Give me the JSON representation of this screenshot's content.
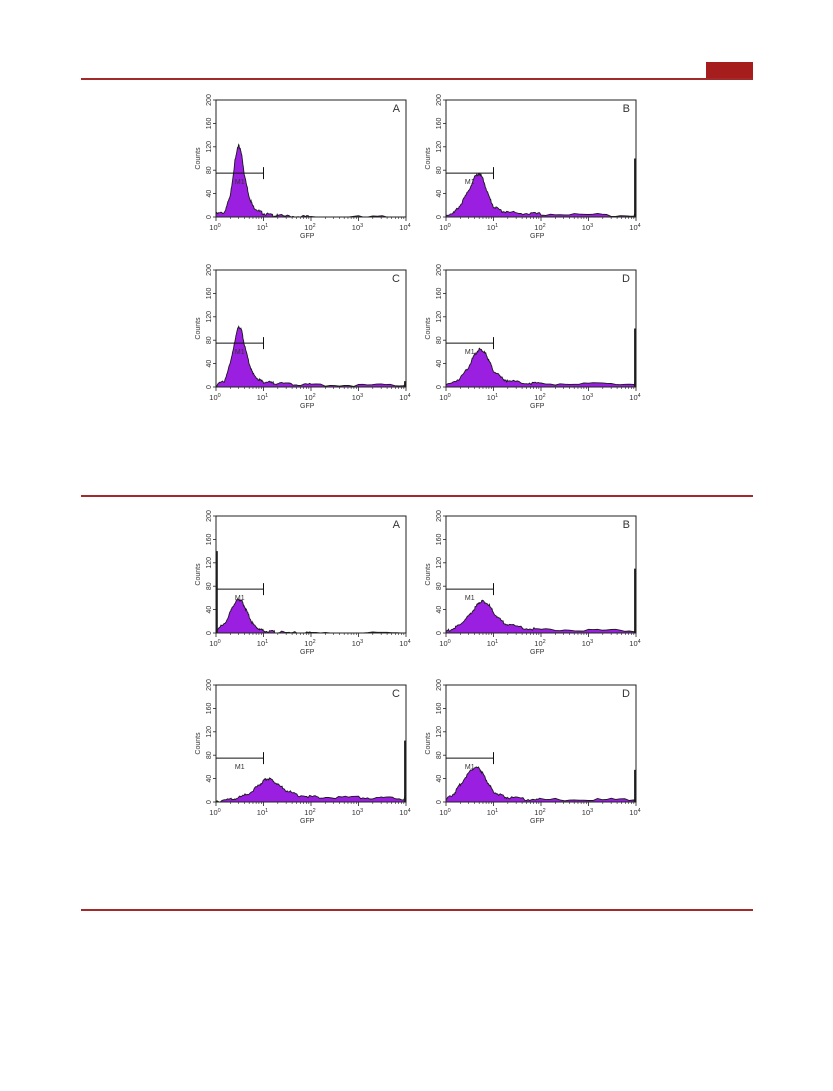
{
  "colors": {
    "rule": "#a32a2a",
    "tab": "#a51d1d",
    "fill": "#9a1fe0",
    "outline": "#1a1a1a",
    "frame": "#222222"
  },
  "chart_data": [
    {
      "figure": 1,
      "panel": "A",
      "type": "area",
      "ylabel": "Counts",
      "xlabel": "GFP",
      "xscale": "log",
      "xlim": [
        1,
        10000
      ],
      "ylim": [
        0,
        200
      ],
      "y_ticks": [
        "0",
        "40",
        "80",
        "120",
        "160",
        "200"
      ],
      "x_ticks": [
        "10^0",
        "10^1",
        "10^2",
        "10^3",
        "10^4"
      ],
      "marker": {
        "label": "M1",
        "x": [
          1,
          10
        ],
        "y": 75
      },
      "x": [
        1,
        1.5,
        2,
        2.5,
        3,
        3.5,
        4,
        5,
        6,
        8,
        10,
        15,
        20,
        50,
        100,
        1000,
        10000
      ],
      "y": [
        5,
        8,
        35,
        95,
        125,
        105,
        70,
        35,
        18,
        10,
        6,
        3,
        2,
        1,
        0,
        0,
        0
      ],
      "end_spike": 0
    },
    {
      "figure": 1,
      "panel": "B",
      "type": "area",
      "ylabel": "Counts",
      "xlabel": "GFP",
      "xscale": "log",
      "xlim": [
        1,
        10000
      ],
      "ylim": [
        0,
        200
      ],
      "y_ticks": [
        "0",
        "40",
        "80",
        "120",
        "160",
        "200"
      ],
      "x_ticks": [
        "10^0",
        "10^1",
        "10^2",
        "10^3",
        "10^4"
      ],
      "marker": {
        "label": "M1",
        "x": [
          1,
          10
        ],
        "y": 75
      },
      "x": [
        1,
        1.5,
        2,
        3,
        4,
        5,
        6,
        8,
        10,
        15,
        20,
        50,
        100,
        1000,
        9000,
        10000
      ],
      "y": [
        3,
        8,
        20,
        45,
        68,
        75,
        65,
        35,
        18,
        10,
        8,
        6,
        5,
        4,
        3,
        3
      ],
      "end_spike": 100
    },
    {
      "figure": 1,
      "panel": "C",
      "type": "area",
      "ylabel": "Counts",
      "xlabel": "GFP",
      "xscale": "log",
      "xlim": [
        1,
        10000
      ],
      "ylim": [
        0,
        200
      ],
      "y_ticks": [
        "0",
        "40",
        "80",
        "120",
        "160",
        "200"
      ],
      "x_ticks": [
        "10^0",
        "10^1",
        "10^2",
        "10^3",
        "10^4"
      ],
      "marker": {
        "label": "M1",
        "x": [
          1,
          10
        ],
        "y": 75
      },
      "x": [
        1,
        1.5,
        2,
        2.5,
        3,
        3.5,
        4,
        5,
        6,
        8,
        10,
        15,
        20,
        50,
        100,
        1000,
        9000,
        10000
      ],
      "y": [
        3,
        10,
        40,
        80,
        105,
        95,
        70,
        40,
        22,
        12,
        9,
        7,
        6,
        5,
        4,
        3,
        3,
        3
      ],
      "end_spike": 10
    },
    {
      "figure": 1,
      "panel": "D",
      "type": "area",
      "ylabel": "Counts",
      "xlabel": "GFP",
      "xscale": "log",
      "xlim": [
        1,
        10000
      ],
      "ylim": [
        0,
        200
      ],
      "y_ticks": [
        "0",
        "40",
        "80",
        "120",
        "160",
        "200"
      ],
      "x_ticks": [
        "10^0",
        "10^1",
        "10^2",
        "10^3",
        "10^4"
      ],
      "marker": {
        "label": "M1",
        "x": [
          1,
          10
        ],
        "y": 75
      },
      "x": [
        1,
        2,
        3,
        4,
        5,
        6,
        7,
        8,
        10,
        15,
        20,
        50,
        100,
        1000,
        9000,
        10000
      ],
      "y": [
        3,
        15,
        35,
        55,
        65,
        62,
        55,
        45,
        28,
        15,
        10,
        7,
        6,
        5,
        5,
        5
      ],
      "end_spike": 100
    },
    {
      "figure": 2,
      "panel": "A",
      "type": "area",
      "ylabel": "Counts",
      "xlabel": "GFP",
      "xscale": "log",
      "xlim": [
        1,
        10000
      ],
      "ylim": [
        0,
        200
      ],
      "y_ticks": [
        "0",
        "40",
        "80",
        "120",
        "160",
        "200"
      ],
      "x_ticks": [
        "10^0",
        "10^1",
        "10^2",
        "10^3",
        "10^4"
      ],
      "marker": {
        "label": "M1",
        "x": [
          1,
          10
        ],
        "y": 75
      },
      "x": [
        1,
        1.5,
        2,
        2.5,
        3,
        3.5,
        4,
        5,
        6,
        8,
        10,
        15,
        20,
        50,
        100,
        1000,
        10000
      ],
      "y": [
        5,
        15,
        35,
        52,
        58,
        55,
        45,
        28,
        15,
        7,
        4,
        2,
        1,
        0,
        0,
        0,
        0
      ],
      "end_spike": 0,
      "start_spike": 140
    },
    {
      "figure": 2,
      "panel": "B",
      "type": "area",
      "ylabel": "Counts",
      "xlabel": "GFP",
      "xscale": "log",
      "xlim": [
        1,
        10000
      ],
      "ylim": [
        0,
        200
      ],
      "y_ticks": [
        "0",
        "40",
        "80",
        "120",
        "160",
        "200"
      ],
      "x_ticks": [
        "10^0",
        "10^1",
        "10^2",
        "10^3",
        "10^4"
      ],
      "marker": {
        "label": "M1",
        "x": [
          1,
          10
        ],
        "y": 75
      },
      "x": [
        1,
        1.5,
        2,
        3,
        4,
        5,
        6,
        8,
        10,
        15,
        20,
        50,
        100,
        1000,
        9000,
        10000
      ],
      "y": [
        3,
        8,
        15,
        28,
        42,
        52,
        55,
        48,
        35,
        20,
        14,
        8,
        6,
        5,
        4,
        4
      ],
      "end_spike": 110
    },
    {
      "figure": 2,
      "panel": "C",
      "type": "area",
      "ylabel": "Counts",
      "xlabel": "GFP",
      "xscale": "log",
      "xlim": [
        1,
        10000
      ],
      "ylim": [
        0,
        200
      ],
      "y_ticks": [
        "0",
        "40",
        "80",
        "120",
        "160",
        "200"
      ],
      "x_ticks": [
        "10^0",
        "10^1",
        "10^2",
        "10^3",
        "10^4"
      ],
      "marker": {
        "label": "M1",
        "x": [
          1,
          10
        ],
        "y": 75
      },
      "x": [
        1,
        2,
        3,
        5,
        8,
        10,
        12,
        15,
        20,
        30,
        50,
        100,
        200,
        1000,
        3000,
        9000,
        10000
      ],
      "y": [
        2,
        4,
        7,
        15,
        28,
        36,
        40,
        38,
        30,
        20,
        12,
        9,
        8,
        8,
        7,
        6,
        6
      ],
      "end_spike": 105
    },
    {
      "figure": 2,
      "panel": "D",
      "type": "area",
      "ylabel": "Counts",
      "xlabel": "GFP",
      "xscale": "log",
      "xlim": [
        1,
        10000
      ],
      "ylim": [
        0,
        200
      ],
      "y_ticks": [
        "0",
        "40",
        "80",
        "120",
        "160",
        "200"
      ],
      "x_ticks": [
        "10^0",
        "10^1",
        "10^2",
        "10^3",
        "10^4"
      ],
      "marker": {
        "label": "M1",
        "x": [
          1,
          10
        ],
        "y": 75
      },
      "x": [
        1,
        1.5,
        2,
        3,
        4,
        5,
        6,
        8,
        10,
        15,
        20,
        50,
        100,
        1000,
        9000,
        10000
      ],
      "y": [
        4,
        15,
        30,
        50,
        60,
        58,
        48,
        30,
        18,
        10,
        8,
        5,
        4,
        4,
        4,
        4
      ],
      "end_spike": 55
    }
  ]
}
